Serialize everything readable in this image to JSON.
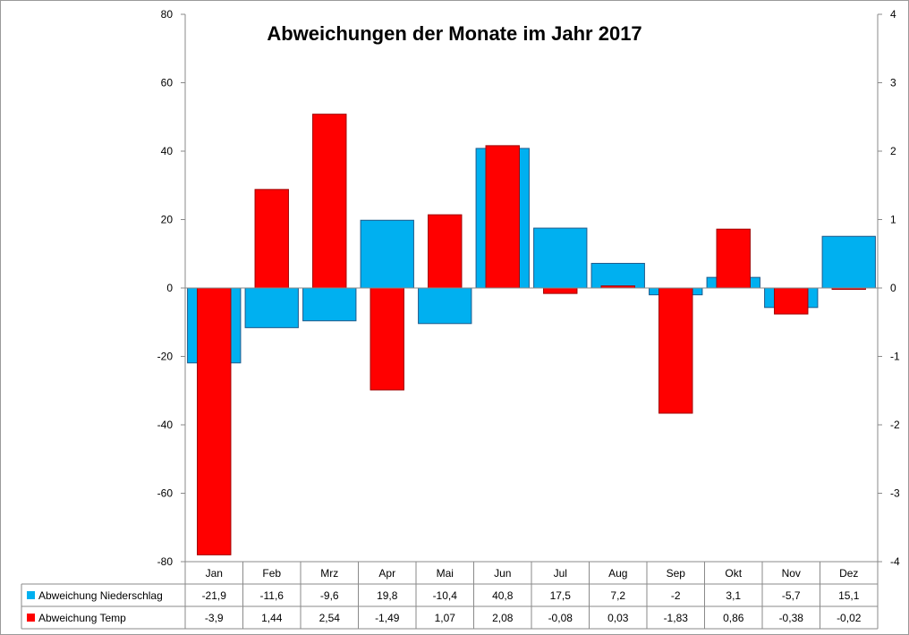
{
  "chart_data": {
    "type": "bar",
    "title": "Abweichungen der Monate im Jahr 2017",
    "categories": [
      "Jan",
      "Feb",
      "Mrz",
      "Apr",
      "Mai",
      "Jun",
      "Jul",
      "Aug",
      "Sep",
      "Okt",
      "Nov",
      "Dez"
    ],
    "series": [
      {
        "name": "Abweichung Niederschlag",
        "axis": "left",
        "color": "#00B0F0",
        "values": [
          -21.9,
          -11.6,
          -9.6,
          19.8,
          -10.4,
          40.8,
          17.5,
          7.2,
          -2,
          3.1,
          -5.7,
          15.1
        ],
        "labels": [
          "-21,9",
          "-11,6",
          "-9,6",
          "19,8",
          "-10,4",
          "40,8",
          "17,5",
          "7,2",
          "-2",
          "3,1",
          "-5,7",
          "15,1"
        ]
      },
      {
        "name": "Abweichung Temp",
        "axis": "right",
        "color": "#FF0000",
        "values": [
          -3.9,
          1.44,
          2.54,
          -1.49,
          1.07,
          2.08,
          -0.08,
          0.03,
          -1.83,
          0.86,
          -0.38,
          -0.02
        ],
        "labels": [
          "-3,9",
          "1,44",
          "2,54",
          "-1,49",
          "1,07",
          "2,08",
          "-0,08",
          "0,03",
          "-1,83",
          "0,86",
          "-0,38",
          "-0,02"
        ]
      }
    ],
    "y_left": {
      "min": -80,
      "max": 80,
      "ticks": [
        80,
        60,
        40,
        20,
        0,
        -20,
        -40,
        -60,
        -80
      ]
    },
    "y_right": {
      "min": -4,
      "max": 4,
      "ticks": [
        4,
        3,
        2,
        1,
        0,
        -1,
        -2,
        -3,
        -4
      ]
    },
    "grid": false,
    "legend_placement": "data table below plot",
    "data_table": true
  }
}
